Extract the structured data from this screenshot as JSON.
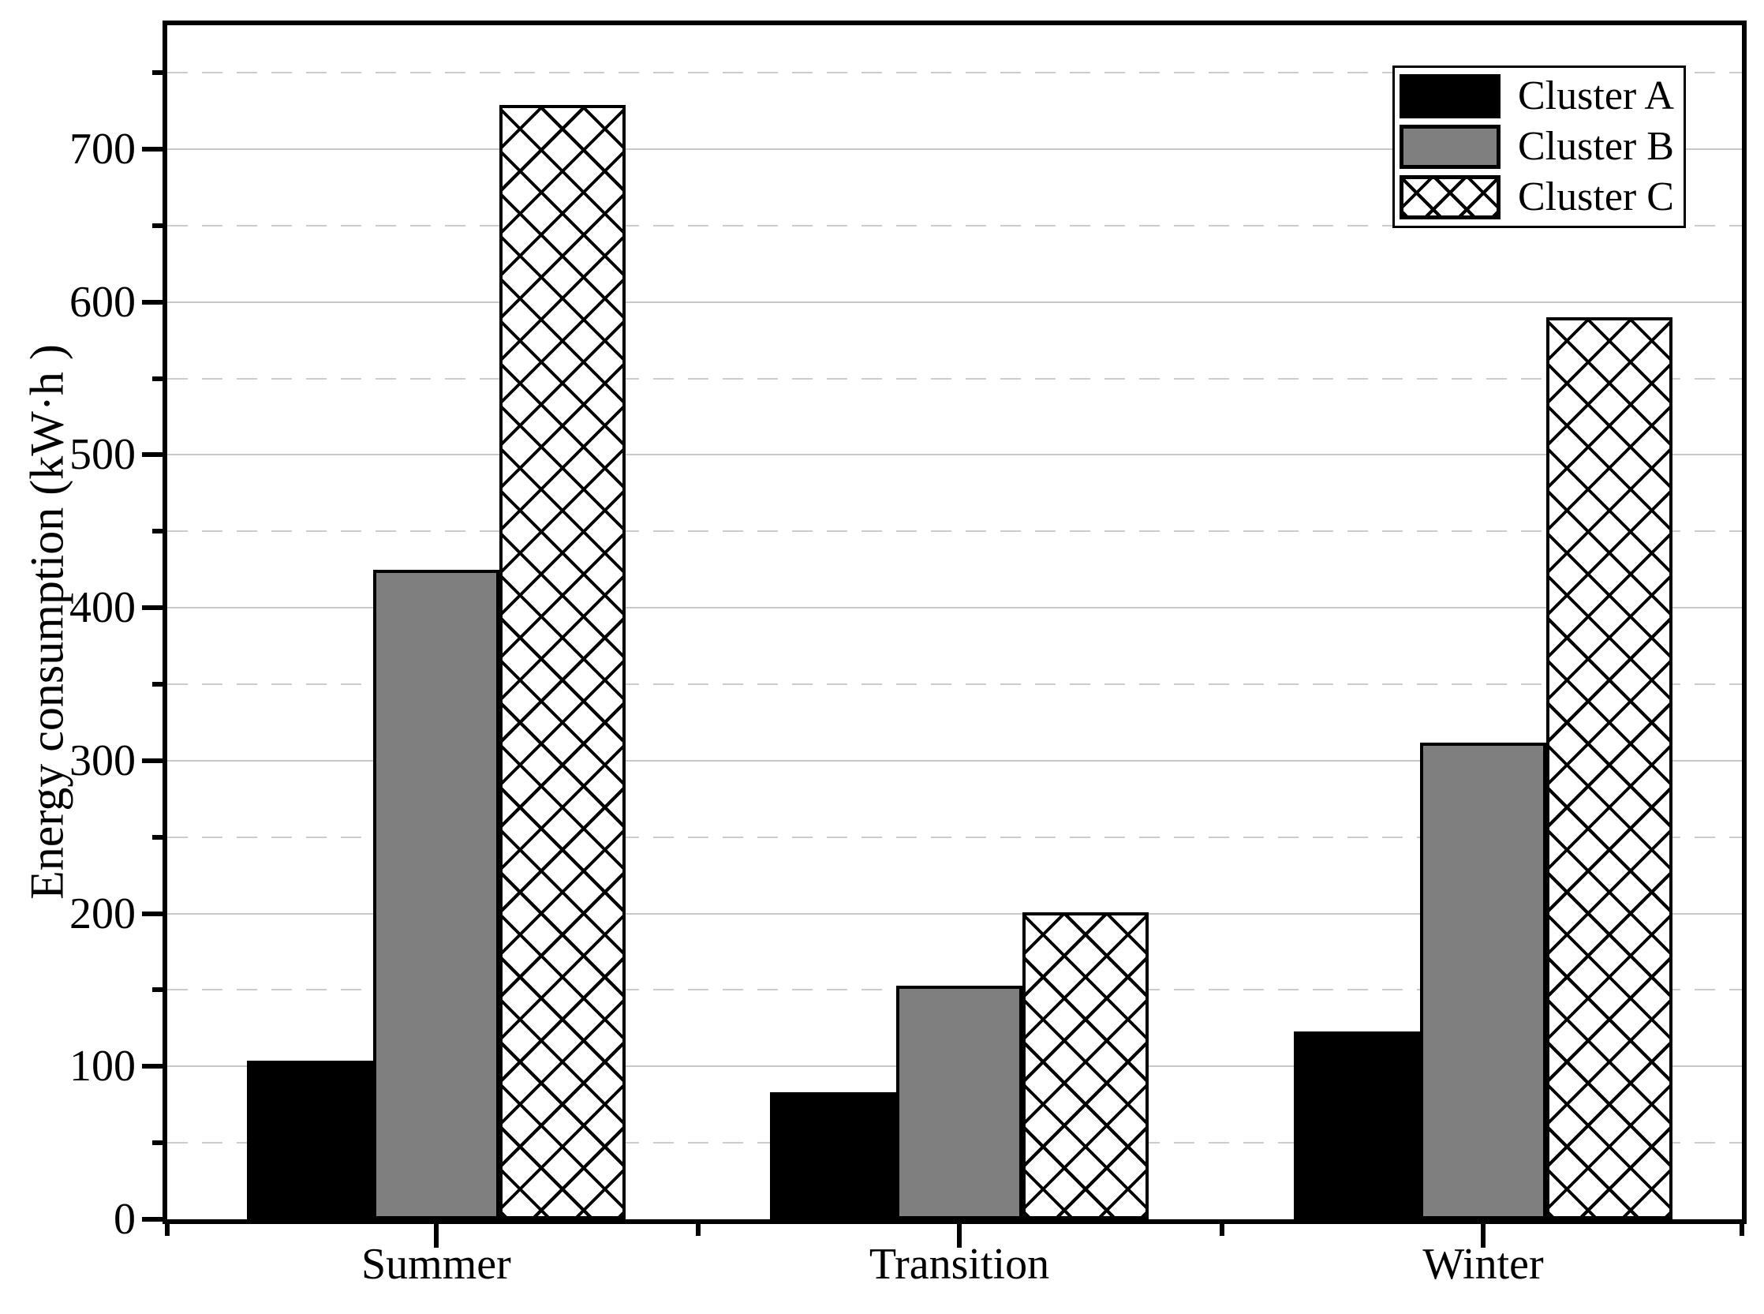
{
  "chart_data": {
    "type": "bar",
    "title": "",
    "categories": [
      "Summer",
      "Transition",
      "Winter"
    ],
    "series": [
      {
        "name": "Cluster A",
        "style": "solid-black",
        "values": [
          104,
          83,
          123
        ]
      },
      {
        "name": "Cluster B",
        "style": "solid-gray",
        "values": [
          425,
          153,
          312
        ]
      },
      {
        "name": "Cluster C",
        "style": "crosshatch",
        "values": [
          729,
          201,
          590
        ]
      }
    ],
    "xlabel": "",
    "ylabel": "Energy consumption (kW·h )",
    "ylim": [
      0,
      781
    ],
    "y_major_ticks": [
      0,
      100,
      200,
      300,
      400,
      500,
      600,
      700
    ],
    "y_minor_ticks": [
      50,
      150,
      250,
      350,
      450,
      550,
      650,
      750
    ],
    "grid": "major solid gray, minor dashed gray, horizontal only",
    "legend_position": "top-right inside plot"
  },
  "legend": {
    "items": [
      {
        "label": "Cluster A",
        "swatch": "solid-black"
      },
      {
        "label": "Cluster B",
        "swatch": "solid-gray"
      },
      {
        "label": "Cluster C",
        "swatch": "crosshatch"
      }
    ]
  },
  "colors": {
    "background": "#ffffff",
    "axis": "#000000",
    "bar_black": "#000000",
    "bar_gray": "#7f7f7f",
    "hatch_lines": "#000000",
    "grid_major": "#c8c8c8",
    "grid_minor": "#cccccc",
    "text": "#000000"
  }
}
